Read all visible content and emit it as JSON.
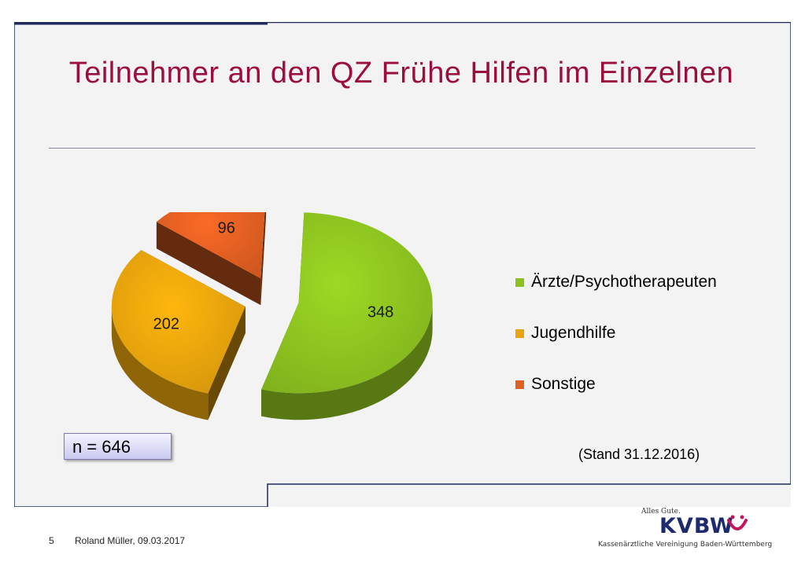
{
  "slide": {
    "title": "Teilnehmer an den QZ Frühe Hilfen im Einzelnen",
    "n_label": "n = 646",
    "stand": "(Stand 31.12.2016)",
    "page_number": "5",
    "author_date": "Roland Müller, 09.03.2017"
  },
  "logo": {
    "tagline": "Alles Gute.",
    "wordmark": "KVBW",
    "subtitle": "Kassenärztliche Vereinigung Baden-Württemberg"
  },
  "colors": {
    "title": "#9b0f3c",
    "green": "#8cc21f",
    "orange": "#e8a30c",
    "red": "#e05f22"
  },
  "chart_data": {
    "type": "pie",
    "title": "",
    "categories": [
      "Ärzte/Psychotherapeuten",
      "Jugendhilfe",
      "Sonstige"
    ],
    "values": [
      348,
      202,
      96
    ],
    "data_labels": [
      "348",
      "202",
      "96"
    ],
    "colors": [
      "#8cc21f",
      "#e8a30c",
      "#e05f22"
    ],
    "exploded": true,
    "three_d": true,
    "legend_position": "right"
  }
}
